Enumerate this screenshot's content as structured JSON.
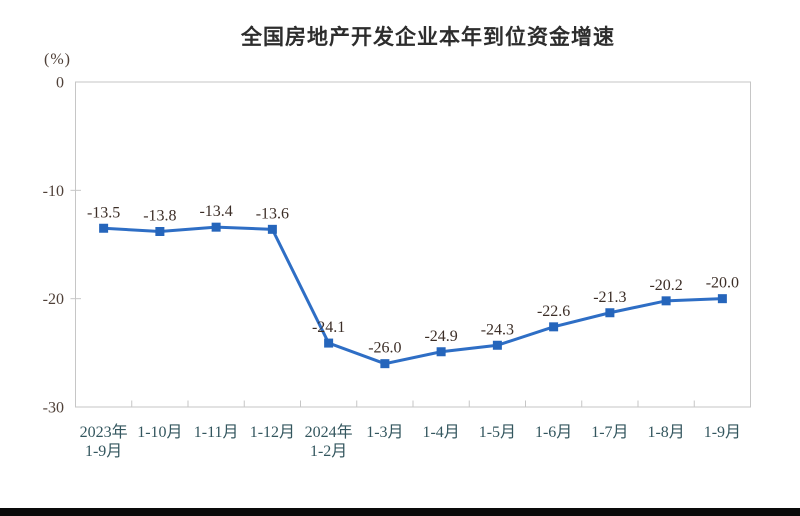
{
  "chart_data": {
    "type": "line",
    "title": "全国房地产开发企业本年到位资金增速",
    "y_unit_label": "(%)",
    "categories": [
      "2023年\n1-9月",
      "1-10月",
      "1-11月",
      "1-12月",
      "2024年\n1-2月",
      "1-3月",
      "1-4月",
      "1-5月",
      "1-6月",
      "1-7月",
      "1-8月",
      "1-9月"
    ],
    "values": [
      -13.5,
      -13.8,
      -13.4,
      -13.6,
      -24.1,
      -26.0,
      -24.9,
      -24.3,
      -22.6,
      -21.3,
      -20.2,
      -20.0
    ],
    "ylim": [
      -30,
      0
    ],
    "y_ticks": [
      0,
      -10,
      -20,
      -30
    ],
    "grid": false,
    "legend": "none",
    "marker_shape": "square",
    "data_labels_shown": true
  },
  "colors": {
    "line": "#2e6ec5",
    "marker": "#2565bb",
    "axis_border": "#c6c6c6",
    "title_text": "#2d2d2d",
    "y_tick_text": "#4f4038",
    "x_tick_text": "#33565e",
    "data_label_text": "#3c2e27",
    "bottom_bar": "#0a0a0a",
    "background": "#ffffff"
  }
}
